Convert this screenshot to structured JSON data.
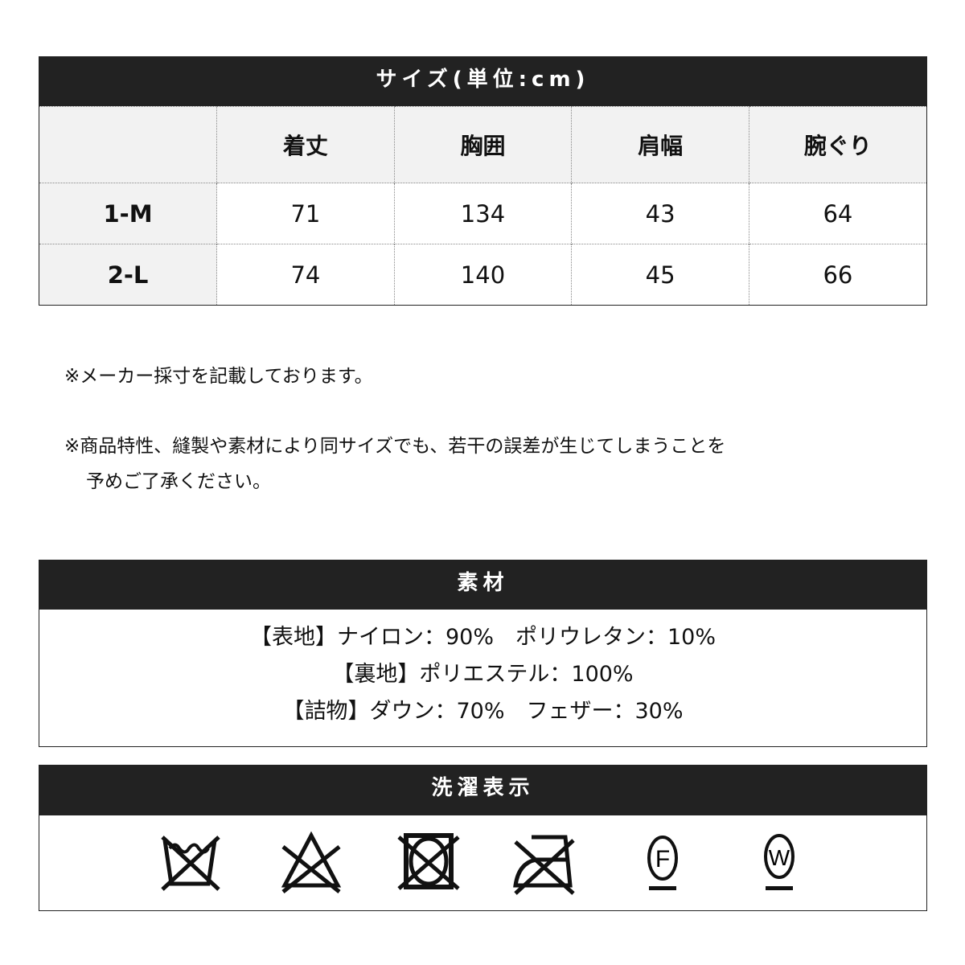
{
  "size_table": {
    "title": "サイズ(単位:cm)",
    "headers": [
      "",
      "着丈",
      "胸囲",
      "肩幅",
      "腕ぐり"
    ],
    "rows": [
      [
        "1-M",
        "71",
        "134",
        "43",
        "64"
      ],
      [
        "2-L",
        "74",
        "140",
        "45",
        "66"
      ]
    ]
  },
  "notes": [
    "※メーカー採寸を記載しております。",
    "※商品特性、縫製や素材により同サイズでも、若干の誤差が生じてしまうことを",
    "予めご了承ください。"
  ],
  "material": {
    "title": "素材",
    "lines": [
      "【表地】ナイロン：90%　ポリウレタン：10%",
      "【裏地】ポリエステル：100%",
      "【詰物】ダウン：70%　フェザー：30%"
    ]
  },
  "care": {
    "title": "洗濯表示",
    "icons": [
      "no-wash-icon",
      "no-bleach-icon",
      "no-tumble-dry-icon",
      "no-iron-icon",
      "dry-clean-f-icon",
      "wet-clean-w-icon"
    ],
    "letters": {
      "f": "F",
      "w": "W"
    }
  }
}
